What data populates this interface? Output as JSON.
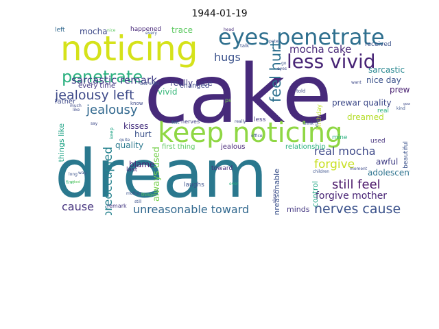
{
  "title": "1944-01-19",
  "words": [
    {
      "text": "cake",
      "color": "#472a7a"
    },
    {
      "text": "dream",
      "color": "#2a788e"
    },
    {
      "text": "noticing",
      "color": "#d5e21a"
    },
    {
      "text": "keep noticing",
      "color": "#8fd744"
    },
    {
      "text": "eyes penetrate",
      "color": "#2e6f8e"
    },
    {
      "text": "penetrate mine",
      "color": "#3b528b"
    },
    {
      "text": "less vivid",
      "color": "#482576"
    },
    {
      "text": "penetrate",
      "color": "#2ab07f"
    },
    {
      "text": "jealousy left",
      "color": "#3e4a89"
    },
    {
      "text": "jealousy",
      "color": "#31688e"
    },
    {
      "text": "sarcastic remark",
      "color": "#424086"
    },
    {
      "text": "mocha cake",
      "color": "#482878"
    },
    {
      "text": "hugs",
      "color": "#3b528b"
    },
    {
      "text": "feel hurt",
      "color": "#2d708e"
    },
    {
      "text": "still feel",
      "color": "#481467"
    },
    {
      "text": "nerves cause",
      "color": "#3b528b"
    },
    {
      "text": "unreasonable toward",
      "color": "#31688e"
    },
    {
      "text": "real mocha",
      "color": "#3e4989"
    },
    {
      "text": "forgive",
      "color": "#c8e020"
    },
    {
      "text": "forgive mother",
      "color": "#482475"
    },
    {
      "text": "preoccupied",
      "color": "#26828e"
    },
    {
      "text": "cause",
      "color": "#46337e"
    },
    {
      "text": "mocha",
      "color": "#3e4a89"
    },
    {
      "text": "trace",
      "color": "#5ec962"
    },
    {
      "text": "really nice",
      "color": "#433e85"
    },
    {
      "text": "vivid",
      "color": "#35b779"
    },
    {
      "text": "nice day",
      "color": "#3b528b"
    },
    {
      "text": "prewar",
      "color": "#481f70"
    },
    {
      "text": "prewar quality",
      "color": "#3e4a89"
    },
    {
      "text": "sarcastic",
      "color": "#25858e"
    },
    {
      "text": "awful",
      "color": "#424086"
    },
    {
      "text": "adolescents",
      "color": "#2c728e"
    },
    {
      "text": "dreamed",
      "color": "#b5de2b"
    },
    {
      "text": "quality",
      "color": "#2a788e"
    },
    {
      "text": "hurt",
      "color": "#3b528b"
    },
    {
      "text": "blame",
      "color": "#482173"
    },
    {
      "text": "always used",
      "color": "#7ad151"
    },
    {
      "text": "kisses",
      "color": "#46317e"
    },
    {
      "text": "changed",
      "color": "#3e4a89"
    },
    {
      "text": "first thing",
      "color": "#5ec962"
    },
    {
      "text": "jealous",
      "color": "#482878"
    },
    {
      "text": "relationship",
      "color": "#2ab07f"
    },
    {
      "text": "control",
      "color": "#22a785"
    },
    {
      "text": "minds",
      "color": "#453882"
    },
    {
      "text": "unreasonable",
      "color": "#3b528b"
    },
    {
      "text": "laughs",
      "color": "#3b528b"
    },
    {
      "text": "toward",
      "color": "#472d7b"
    },
    {
      "text": "father asked",
      "color": "#31688e"
    },
    {
      "text": "things like",
      "color": "#20a386"
    },
    {
      "text": "father",
      "color": "#3e4a89"
    },
    {
      "text": "every time",
      "color": "#443a83"
    },
    {
      "text": "happened",
      "color": "#482878"
    },
    {
      "text": "left",
      "color": "#31688e"
    },
    {
      "text": "received",
      "color": "#3b528b"
    },
    {
      "text": "birthday",
      "color": "#bddf26"
    },
    {
      "text": "beautiful",
      "color": "#3b528b"
    },
    {
      "text": "used",
      "color": "#46337e"
    },
    {
      "text": "real",
      "color": "#2ab07f"
    },
    {
      "text": "less",
      "color": "#453882"
    },
    {
      "text": "mine",
      "color": "#2ab07f"
    },
    {
      "text": "last",
      "color": "#482475"
    },
    {
      "text": "remark",
      "color": "#453882"
    },
    {
      "text": "nerves",
      "color": "#433e85"
    },
    {
      "text": "felt",
      "color": "#31688e"
    },
    {
      "text": "know",
      "color": "#3e4a89"
    },
    {
      "text": "talk",
      "color": "#3b528b"
    },
    {
      "text": "told",
      "color": "#3e4989"
    },
    {
      "text": "ps",
      "color": "#7ad151"
    },
    {
      "text": "every",
      "color": "#3b528b"
    },
    {
      "text": "nice",
      "color": "#5ec962"
    },
    {
      "text": "head",
      "color": "#472d7b"
    },
    {
      "text": "peter",
      "color": "#3b528b"
    },
    {
      "text": "affection",
      "color": "#b5de2b"
    },
    {
      "text": "last night",
      "color": "#3b528b"
    },
    {
      "text": "keep",
      "color": "#20a386"
    },
    {
      "text": "quite",
      "color": "#3b528b"
    },
    {
      "text": "much",
      "color": "#3e4a89"
    },
    {
      "text": "mother",
      "color": "#3b528b"
    },
    {
      "text": "children",
      "color": "#3b528b"
    },
    {
      "text": "first",
      "color": "#35b779"
    },
    {
      "text": "long",
      "color": "#3b528b"
    },
    {
      "text": "thing",
      "color": "#5ec962"
    },
    {
      "text": "still",
      "color": "#3b528b"
    },
    {
      "text": "ever",
      "color": "#2ab07f"
    },
    {
      "text": "really",
      "color": "#3e4a89"
    },
    {
      "text": "think",
      "color": "#3b528b"
    },
    {
      "text": "always",
      "color": "#3e4a89"
    },
    {
      "text": "asked",
      "color": "#5ec962"
    },
    {
      "text": "office",
      "color": "#3b528b"
    },
    {
      "text": "kind",
      "color": "#3b528b"
    },
    {
      "text": "good",
      "color": "#3e4a89"
    },
    {
      "text": "moment",
      "color": "#3e4a89"
    },
    {
      "text": "day",
      "color": "#3b528b"
    },
    {
      "text": "eyes",
      "color": "#3e4a89"
    },
    {
      "text": "want",
      "color": "#3e4a89"
    },
    {
      "text": "like",
      "color": "#3e4a89"
    },
    {
      "text": "go",
      "color": "#3b528b"
    },
    {
      "text": "way",
      "color": "#3b528b"
    },
    {
      "text": "say",
      "color": "#3e4a89"
    }
  ]
}
